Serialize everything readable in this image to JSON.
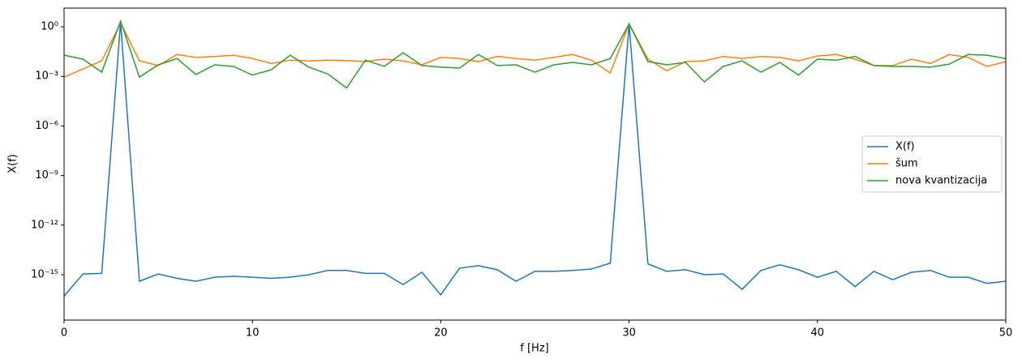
{
  "chart_data": {
    "type": "line",
    "log_y": true,
    "xlabel": "f [Hz]",
    "ylabel": "X(f)",
    "x": [
      0,
      1,
      2,
      3,
      4,
      5,
      6,
      7,
      8,
      9,
      10,
      11,
      12,
      13,
      14,
      15,
      16,
      17,
      18,
      19,
      20,
      21,
      22,
      23,
      24,
      25,
      26,
      27,
      28,
      29,
      30,
      31,
      32,
      33,
      34,
      35,
      36,
      37,
      38,
      39,
      40,
      41,
      42,
      43,
      44,
      45,
      46,
      47,
      48,
      49,
      50
    ],
    "series": [
      {
        "name": "X(f)",
        "color": "#1f77b4",
        "values": [
          5e-17,
          1.1e-15,
          1.2e-15,
          2,
          4e-16,
          1.1e-15,
          6e-16,
          4e-16,
          7e-16,
          8e-16,
          7e-16,
          6e-16,
          7e-16,
          1e-15,
          1.8e-15,
          1.8e-15,
          1.2e-15,
          1.2e-15,
          2.5e-16,
          1.4e-15,
          6e-17,
          2.5e-15,
          3.5e-15,
          2e-15,
          4e-16,
          1.6e-15,
          1.6e-15,
          1.8e-15,
          2.2e-15,
          5e-15,
          1.4,
          4.5e-15,
          1.6e-15,
          2e-15,
          1e-15,
          1.1e-15,
          1.3e-16,
          1.8e-15,
          4e-15,
          2e-15,
          7e-16,
          1.6e-15,
          1.9e-16,
          1.6e-15,
          5e-16,
          1.4e-15,
          1.8e-15,
          7e-16,
          7e-16,
          3e-16,
          4e-16
        ]
      },
      {
        "name": "šum",
        "color": "#ff7f0e",
        "values": [
          0.0009,
          0.0028,
          0.0087,
          1.7,
          0.0087,
          0.0045,
          0.021,
          0.014,
          0.016,
          0.019,
          0.012,
          0.006,
          0.0095,
          0.0087,
          0.0095,
          0.009,
          0.0078,
          0.011,
          0.0087,
          0.005,
          0.014,
          0.012,
          0.0078,
          0.016,
          0.012,
          0.0095,
          0.014,
          0.021,
          0.0095,
          0.0016,
          1.5,
          0.011,
          0.0022,
          0.0078,
          0.0087,
          0.016,
          0.012,
          0.016,
          0.014,
          0.0087,
          0.017,
          0.021,
          0.011,
          0.0045,
          0.0045,
          0.011,
          0.006,
          0.021,
          0.014,
          0.004,
          0.0078
        ]
      },
      {
        "name": "nova kvantizacija",
        "color": "#2ca02c",
        "values": [
          0.019,
          0.011,
          0.0018,
          2.2,
          0.0009,
          0.005,
          0.012,
          0.0013,
          0.005,
          0.004,
          0.0012,
          0.0025,
          0.019,
          0.0036,
          0.0014,
          0.0002,
          0.0095,
          0.004,
          0.027,
          0.0045,
          0.0036,
          0.0032,
          0.021,
          0.0045,
          0.005,
          0.0018,
          0.005,
          0.007,
          0.005,
          0.012,
          1.5,
          0.0078,
          0.005,
          0.007,
          0.00046,
          0.004,
          0.0087,
          0.0018,
          0.007,
          0.0012,
          0.011,
          0.0095,
          0.016,
          0.0045,
          0.004,
          0.004,
          0.0036,
          0.0055,
          0.021,
          0.019,
          0.012
        ]
      }
    ],
    "xlim": [
      0,
      50
    ],
    "xticks": [
      0,
      10,
      20,
      30,
      40,
      50
    ],
    "ylim": [
      1.8e-18,
      13.5
    ],
    "yticks": [
      {
        "value": 1e-15,
        "label": "10⁻¹⁵"
      },
      {
        "value": 1e-12,
        "label": "10⁻¹²"
      },
      {
        "value": 1e-09,
        "label": "10⁻⁹"
      },
      {
        "value": 1e-06,
        "label": "10⁻⁶"
      },
      {
        "value": 0.001,
        "label": "10⁻³"
      },
      {
        "value": 1,
        "label": "10⁰"
      }
    ],
    "legend": "right"
  }
}
